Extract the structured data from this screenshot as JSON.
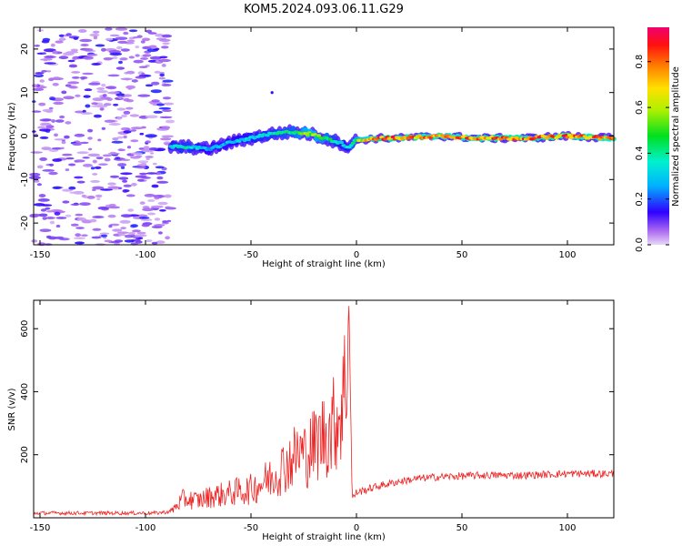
{
  "title": "KOM5.2024.093.06.11.G29",
  "chart_data": [
    {
      "type": "heatmap",
      "xlabel": "Height of straight line (km)",
      "ylabel": "Frequency (Hz)",
      "xlim": [
        -153,
        122
      ],
      "ylim": [
        -25,
        25
      ],
      "x_ticks": [
        -150,
        -100,
        -50,
        0,
        50,
        100
      ],
      "y_ticks": [
        -20,
        -10,
        0,
        10,
        20
      ],
      "colorbar": {
        "label": "Normalized spectral amplitude",
        "range": [
          0,
          0.95
        ],
        "ticks": [
          0.0,
          0.2,
          0.4,
          0.6,
          0.8
        ]
      },
      "noise_region_x": [
        -153,
        -88
      ],
      "signal_track": {
        "x": [
          -88,
          -80,
          -70,
          -60,
          -50,
          -40,
          -30,
          -22,
          -15,
          -8,
          -4,
          0,
          10,
          20,
          40,
          60,
          80,
          100,
          122
        ],
        "frequency": [
          -2.5,
          -2.5,
          -3.0,
          -1.5,
          -0.5,
          0.5,
          1.0,
          0.5,
          -0.5,
          -1.5,
          -2.5,
          -1.0,
          -0.5,
          -0.5,
          0.0,
          -0.5,
          -0.5,
          0.0,
          -0.5
        ],
        "amplitude": [
          0.35,
          0.4,
          0.3,
          0.3,
          0.35,
          0.4,
          0.45,
          0.6,
          0.5,
          0.35,
          0.35,
          0.55,
          0.9,
          0.85,
          0.8,
          0.85,
          0.85,
          0.85,
          0.8
        ]
      },
      "grid": false
    },
    {
      "type": "line",
      "xlabel": "Height of straight line (km)",
      "ylabel": "SNR (v/v)",
      "xlim": [
        -153,
        122
      ],
      "ylim": [
        0,
        690
      ],
      "x_ticks": [
        -150,
        -100,
        -50,
        0,
        50,
        100
      ],
      "y_ticks": [
        200,
        400,
        600
      ],
      "color": "#ee2222",
      "series": [
        {
          "x": [
            -153,
            -130,
            -110,
            -95,
            -88,
            -82,
            -75,
            -68,
            -62,
            -55,
            -50,
            -45,
            -40,
            -35,
            -30,
            -27,
            -24,
            -20,
            -16,
            -12,
            -9,
            -7,
            -5,
            -4,
            -3.5,
            -3,
            -2,
            0,
            10,
            20,
            30,
            40,
            60,
            80,
            100,
            122
          ],
          "values": [
            15,
            15,
            15,
            15,
            20,
            60,
            55,
            70,
            75,
            85,
            90,
            110,
            130,
            160,
            190,
            210,
            200,
            230,
            260,
            280,
            320,
            350,
            440,
            600,
            680,
            450,
            60,
            80,
            100,
            115,
            125,
            130,
            135,
            135,
            140,
            140
          ]
        }
      ],
      "grid": false
    }
  ]
}
